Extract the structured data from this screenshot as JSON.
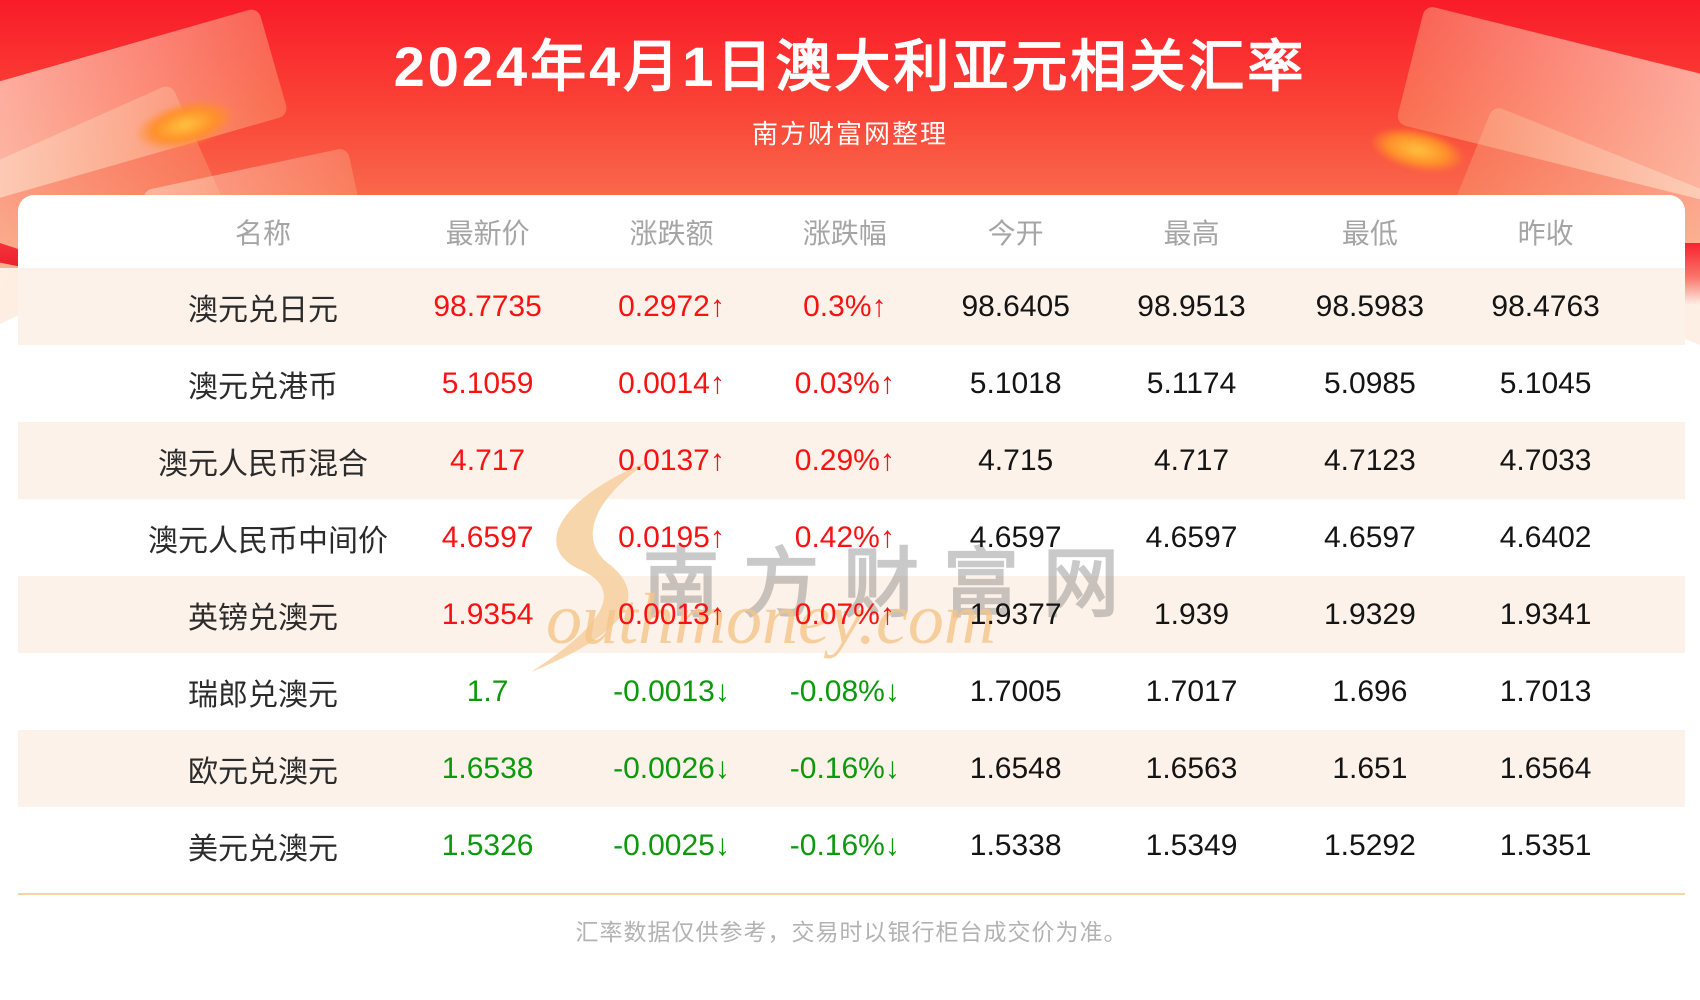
{
  "page": {
    "title": "2024年4月1日澳大利亚元相关汇率",
    "subtitle": "南方财富网整理",
    "footer_note": "汇率数据仅供参考，交易时以银行柜台成交价为准。"
  },
  "watermark": {
    "cn": "南方财富网",
    "en": "outhmoney.com"
  },
  "colors": {
    "up": "#f81212",
    "down": "#0c9a0c",
    "stripe": "#fdf2ea",
    "divider": "#f6d3a5",
    "hero_top": "#f91b29",
    "hero_mid": "#fa4336",
    "hero_bottom": "#f69468"
  },
  "chart_data": {
    "type": "table",
    "title": "2024年4月1日澳大利亚元相关汇率",
    "columns": [
      "名称",
      "最新价",
      "涨跌额",
      "涨跌幅",
      "今开",
      "最高",
      "最低",
      "昨收"
    ],
    "rows": [
      {
        "name": "澳元兑日元",
        "latest": "98.7735",
        "change": "0.2972↑",
        "change_pct": "0.3%↑",
        "direction": "up",
        "open": "98.6405",
        "high": "98.9513",
        "low": "98.5983",
        "prev_close": "98.4763"
      },
      {
        "name": "澳元兑港币",
        "latest": "5.1059",
        "change": "0.0014↑",
        "change_pct": "0.03%↑",
        "direction": "up",
        "open": "5.1018",
        "high": "5.1174",
        "low": "5.0985",
        "prev_close": "5.1045"
      },
      {
        "name": "澳元人民币混合",
        "latest": "4.717",
        "change": "0.0137↑",
        "change_pct": "0.29%↑",
        "direction": "up",
        "open": "4.715",
        "high": "4.717",
        "low": "4.7123",
        "prev_close": "4.7033"
      },
      {
        "name": "澳元人民币中间价",
        "latest": "4.6597",
        "change": "0.0195↑",
        "change_pct": "0.42%↑",
        "direction": "up",
        "open": "4.6597",
        "high": "4.6597",
        "low": "4.6597",
        "prev_close": "4.6402"
      },
      {
        "name": "英镑兑澳元",
        "latest": "1.9354",
        "change": "0.0013↑",
        "change_pct": "0.07%↑",
        "direction": "up",
        "open": "1.9377",
        "high": "1.939",
        "low": "1.9329",
        "prev_close": "1.9341"
      },
      {
        "name": "瑞郎兑澳元",
        "latest": "1.7",
        "change": "-0.0013↓",
        "change_pct": "-0.08%↓",
        "direction": "down",
        "open": "1.7005",
        "high": "1.7017",
        "low": "1.696",
        "prev_close": "1.7013"
      },
      {
        "name": "欧元兑澳元",
        "latest": "1.6538",
        "change": "-0.0026↓",
        "change_pct": "-0.16%↓",
        "direction": "down",
        "open": "1.6548",
        "high": "1.6563",
        "low": "1.651",
        "prev_close": "1.6564"
      },
      {
        "name": "美元兑澳元",
        "latest": "1.5326",
        "change": "-0.0025↓",
        "change_pct": "-0.16%↓",
        "direction": "down",
        "open": "1.5338",
        "high": "1.5349",
        "low": "1.5292",
        "prev_close": "1.5351"
      }
    ]
  }
}
